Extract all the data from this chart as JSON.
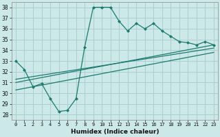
{
  "xlabel": "Humidex (Indice chaleur)",
  "xlim": [
    -0.5,
    23.5
  ],
  "ylim": [
    27.5,
    38.5
  ],
  "yticks": [
    28,
    29,
    30,
    31,
    32,
    33,
    34,
    35,
    36,
    37,
    38
  ],
  "xticks": [
    0,
    1,
    2,
    3,
    4,
    5,
    6,
    7,
    8,
    9,
    10,
    11,
    12,
    13,
    14,
    15,
    16,
    17,
    18,
    19,
    20,
    21,
    22,
    23
  ],
  "bg_color": "#cce8e8",
  "grid_color": "#aacfcf",
  "line_color": "#1a7a6e",
  "line1_x": [
    0,
    1,
    2,
    3,
    4,
    5,
    6,
    7,
    8,
    9,
    10,
    11,
    12,
    13,
    14,
    15,
    16,
    17,
    18,
    19,
    20,
    21,
    22,
    23
  ],
  "line1_y": [
    33.0,
    32.2,
    30.6,
    30.9,
    29.5,
    28.3,
    28.4,
    29.5,
    34.3,
    38.0,
    38.0,
    38.0,
    36.7,
    35.8,
    36.5,
    36.0,
    36.5,
    35.8,
    35.3,
    34.8,
    34.7,
    34.5,
    34.8,
    34.5
  ],
  "line2_x": [
    0,
    23
  ],
  "line2_y": [
    31.0,
    34.5
  ],
  "line3_x": [
    0,
    23
  ],
  "line3_y": [
    31.3,
    34.2
  ],
  "line4_x": [
    0,
    23
  ],
  "line4_y": [
    30.3,
    33.8
  ]
}
